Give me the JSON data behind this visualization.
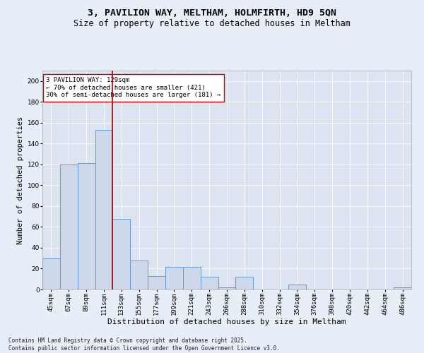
{
  "title": "3, PAVILION WAY, MELTHAM, HOLMFIRTH, HD9 5QN",
  "subtitle": "Size of property relative to detached houses in Meltham",
  "xlabel": "Distribution of detached houses by size in Meltham",
  "ylabel": "Number of detached properties",
  "categories": [
    "45sqm",
    "67sqm",
    "89sqm",
    "111sqm",
    "133sqm",
    "155sqm",
    "177sqm",
    "199sqm",
    "221sqm",
    "243sqm",
    "266sqm",
    "288sqm",
    "310sqm",
    "332sqm",
    "354sqm",
    "376sqm",
    "398sqm",
    "420sqm",
    "442sqm",
    "464sqm",
    "486sqm"
  ],
  "values": [
    30,
    120,
    121,
    153,
    68,
    28,
    13,
    22,
    22,
    12,
    2,
    12,
    0,
    0,
    5,
    0,
    0,
    0,
    0,
    0,
    2
  ],
  "bar_color": "#cdd9ea",
  "bar_edge_color": "#6699cc",
  "ylim": [
    0,
    210
  ],
  "yticks": [
    0,
    20,
    40,
    60,
    80,
    100,
    120,
    140,
    160,
    180,
    200
  ],
  "vline_color": "#aa0000",
  "annotation_text": "3 PAVILION WAY: 129sqm\n← 70% of detached houses are smaller (421)\n30% of semi-detached houses are larger (181) →",
  "annotation_box_color": "#ffffff",
  "annotation_box_edge": "#cc0000",
  "footer": "Contains HM Land Registry data © Crown copyright and database right 2025.\nContains public sector information licensed under the Open Government Licence v3.0.",
  "background_color": "#e8eef8",
  "plot_bg_color": "#dbe4f0",
  "grid_color": "#ffffff",
  "title_fontsize": 9.5,
  "subtitle_fontsize": 8.5,
  "xlabel_fontsize": 8,
  "ylabel_fontsize": 7.5,
  "tick_fontsize": 6.5,
  "annot_fontsize": 6.5,
  "footer_fontsize": 5.5
}
